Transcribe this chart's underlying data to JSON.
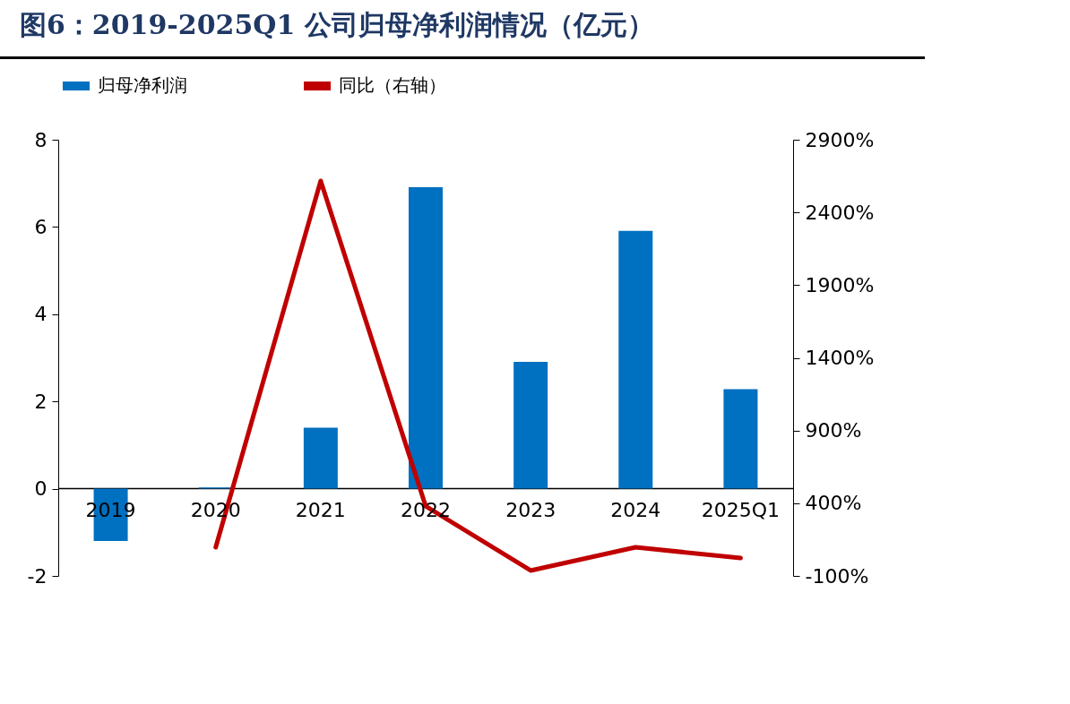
{
  "chart_data": {
    "type": "bar",
    "title": "图6：2019-2025Q1 公司归母净利润情况（亿元）",
    "categories": [
      "2019",
      "2020",
      "2021",
      "2022",
      "2023",
      "2024",
      "2025Q1"
    ],
    "series": [
      {
        "name": "归母净利润",
        "color": "#0070c0",
        "values": [
          -1.2,
          0.03,
          1.4,
          6.91,
          2.91,
          5.91,
          2.28
        ]
      },
      {
        "name": "同比（右轴）",
        "type": "line",
        "axis": "y2",
        "color": "#c00000",
        "values": [
          null,
          97,
          2617,
          380,
          -63,
          97,
          23
        ]
      }
    ],
    "ylim": [
      -2,
      8
    ],
    "yticks": [
      -2,
      0,
      2,
      4,
      6,
      8
    ],
    "y2lim": [
      -100,
      2900
    ],
    "y2ticks": [
      {
        "value": -100,
        "label": "-100%"
      },
      {
        "value": 400,
        "label": "400%"
      },
      {
        "value": 900,
        "label": "900%"
      },
      {
        "value": 1400,
        "label": "1400%"
      },
      {
        "value": 1900,
        "label": "1900%"
      },
      {
        "value": 2400,
        "label": "2400%"
      },
      {
        "value": 2900,
        "label": "2900%"
      }
    ],
    "legend": "top",
    "grid": false
  }
}
